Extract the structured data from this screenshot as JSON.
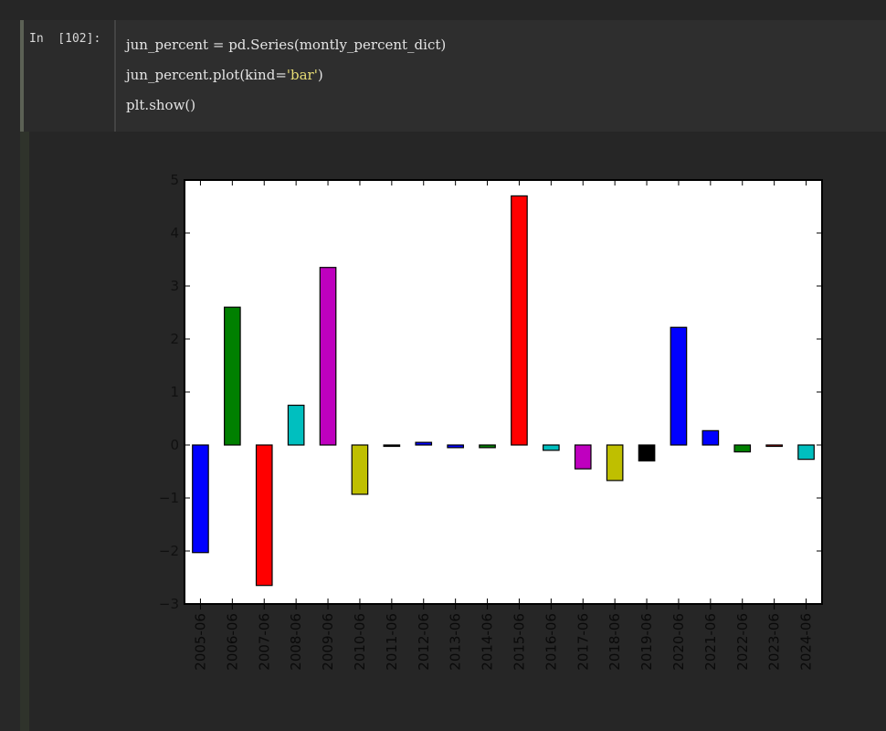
{
  "cell": {
    "prompt": "In  [102]:",
    "code_lines": [
      [
        {
          "t": "jun_percent = pd.Series(montly_percent_dict)",
          "cls": ""
        }
      ],
      [
        {
          "t": "jun_percent.plot(kind=",
          "cls": ""
        },
        {
          "t": "'bar'",
          "cls": "str"
        },
        {
          "t": ")",
          "cls": ""
        }
      ],
      [
        {
          "t": "plt.show()",
          "cls": ""
        }
      ]
    ]
  },
  "chart_data": {
    "type": "bar",
    "categories": [
      "2005-06",
      "2006-06",
      "2007-06",
      "2008-06",
      "2009-06",
      "2010-06",
      "2011-06",
      "2012-06",
      "2013-06",
      "2014-06",
      "2015-06",
      "2016-06",
      "2017-06",
      "2018-06",
      "2019-06",
      "2020-06",
      "2021-06",
      "2022-06",
      "2023-06",
      "2024-06"
    ],
    "values": [
      -2.03,
      2.6,
      -2.65,
      0.75,
      3.35,
      -0.93,
      0.0,
      0.05,
      -0.05,
      -0.05,
      4.7,
      -0.1,
      -0.45,
      -0.67,
      -0.3,
      2.22,
      0.27,
      -0.13,
      0.0,
      -0.27
    ],
    "colors": [
      "#0000ff",
      "#008000",
      "#ff0000",
      "#00bfbf",
      "#bf00bf",
      "#bfbf00",
      "#000000",
      "#0000ff",
      "#0000ff",
      "#008000",
      "#ff0000",
      "#00bfbf",
      "#bf00bf",
      "#bfbf00",
      "#000000",
      "#0000ff",
      "#0000ff",
      "#008000",
      "#ff0000",
      "#00bfbf"
    ],
    "yticks": [
      -3,
      -2,
      -1,
      0,
      1,
      2,
      3,
      4,
      5
    ],
    "ytick_labels": [
      "−3",
      "−2",
      "−1",
      "0",
      "1",
      "2",
      "3",
      "4",
      "5"
    ],
    "ylim": [
      -3,
      5
    ],
    "title": "",
    "xlabel": "",
    "ylabel": "",
    "grid": false
  }
}
